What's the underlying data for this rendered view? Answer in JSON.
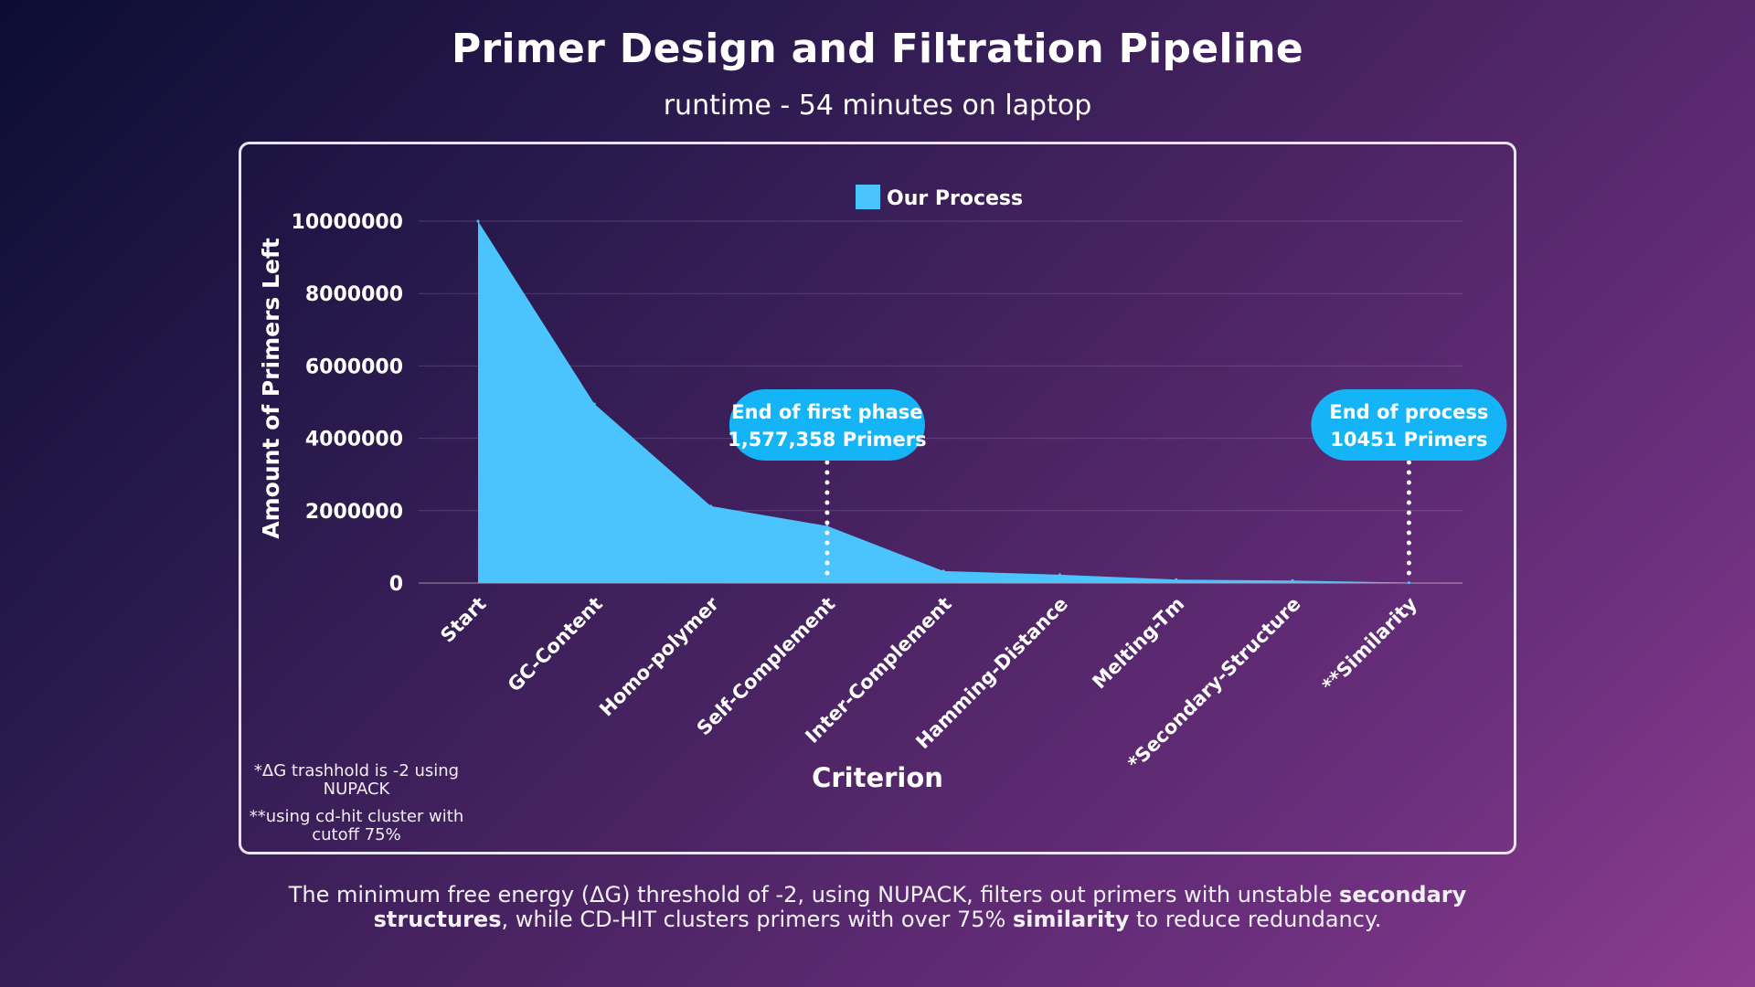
{
  "title": "Primer Design and Filtration Pipeline",
  "subtitle": "runtime - 54 minutes on laptop",
  "colors": {
    "area": "#4bc4fd",
    "callout": "#14b4f7",
    "grid": "rgba(255,255,255,0.16)"
  },
  "chart_data": {
    "type": "area",
    "xlabel": "Criterion",
    "ylabel": "Amount of Primers Left",
    "ylim": [
      0,
      10000000
    ],
    "yticks": [
      "0",
      "2000000",
      "4000000",
      "6000000",
      "8000000",
      "10000000"
    ],
    "grid": true,
    "legend_position": "top-center",
    "categories": [
      "Start",
      "GC-Content",
      "Homo-polymer",
      "Self-Complement",
      "Inter-Complement",
      "Hamming-Distance",
      "Melting-Tm",
      "*Secondary-Structure",
      "**Similarity"
    ],
    "series": [
      {
        "name": "Our Process",
        "values": [
          10000000,
          4950000,
          2130000,
          1577358,
          330000,
          230000,
          95000,
          70000,
          10451
        ]
      }
    ],
    "annotations": [
      {
        "category_index": 3,
        "lines": [
          "End of first phase",
          "1,577,358 Primers"
        ]
      },
      {
        "category_index": 8,
        "lines": [
          "End of process",
          "10451 Primers"
        ]
      }
    ]
  },
  "footnotes": [
    "*ΔG trashhold is -2 using NUPACK",
    "**using cd-hit cluster with cutoff 75%"
  ],
  "caption": {
    "p1": "The minimum free energy (ΔG) threshold of -2, using NUPACK, filters out primers with unstable ",
    "b1": "secondary structures",
    "p2": ", while CD-HIT clusters primers with over 75% ",
    "b2": "similarity",
    "p3": " to reduce redundancy."
  }
}
